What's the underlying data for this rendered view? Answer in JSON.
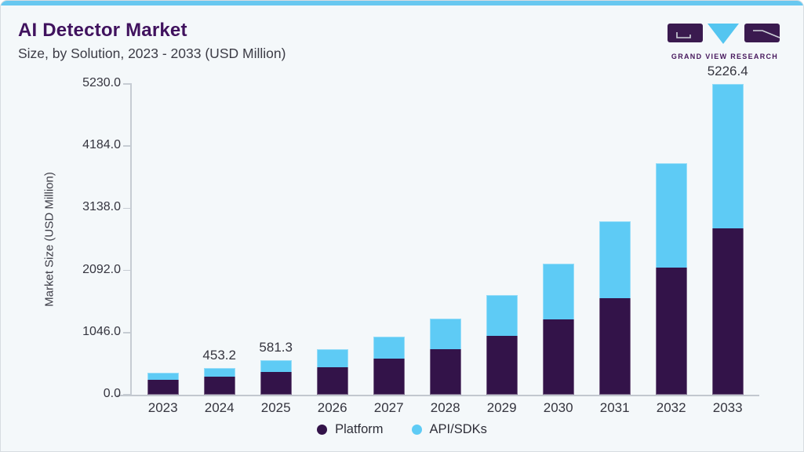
{
  "header": {
    "title": "AI Detector Market",
    "subtitle": "Size, by Solution, 2023 - 2033 (USD Million)",
    "logo_text": "GRAND VIEW RESEARCH"
  },
  "colors": {
    "accent_bar": "#68c8f0",
    "platform": "#331349",
    "api_sdks": "#5ecbf5",
    "title_text": "#40125e",
    "body_text": "#3c3c46",
    "axis_line": "#c6ccd3",
    "background": "#f4f8fa",
    "logo_purple": "#3a1a4f",
    "logo_blue": "#54c5f0"
  },
  "chart_data": {
    "type": "bar",
    "stacked": true,
    "title": "AI Detector Market",
    "subtitle": "Size, by Solution, 2023 - 2033 (USD Million)",
    "categories": [
      "2023",
      "2024",
      "2025",
      "2026",
      "2027",
      "2028",
      "2029",
      "2030",
      "2031",
      "2032",
      "2033"
    ],
    "series": [
      {
        "name": "Platform",
        "color": "#331349",
        "values": [
          250.0,
          307.0,
          383.0,
          468.0,
          606.0,
          768.0,
          990.0,
          1266.0,
          1631.0,
          2136.0,
          2795.0
        ]
      },
      {
        "name": "API/SDKs",
        "color": "#5ecbf5",
        "values": [
          115.0,
          146.2,
          198.3,
          292.0,
          375.0,
          508.0,
          685.0,
          940.0,
          1290.0,
          1760.0,
          2431.4
        ]
      }
    ],
    "data_labels": {
      "2024": "453.2",
      "2025": "581.3",
      "2033": "5226.4"
    },
    "ylabel": "Market Size (USD Million)",
    "xlabel": "",
    "yticks": [
      "0.0",
      "1046.0",
      "2092.0",
      "3138.0",
      "4184.0",
      "5230.0"
    ],
    "ylim": [
      0,
      5230
    ],
    "grid": false,
    "legend_position": "bottom-center"
  }
}
